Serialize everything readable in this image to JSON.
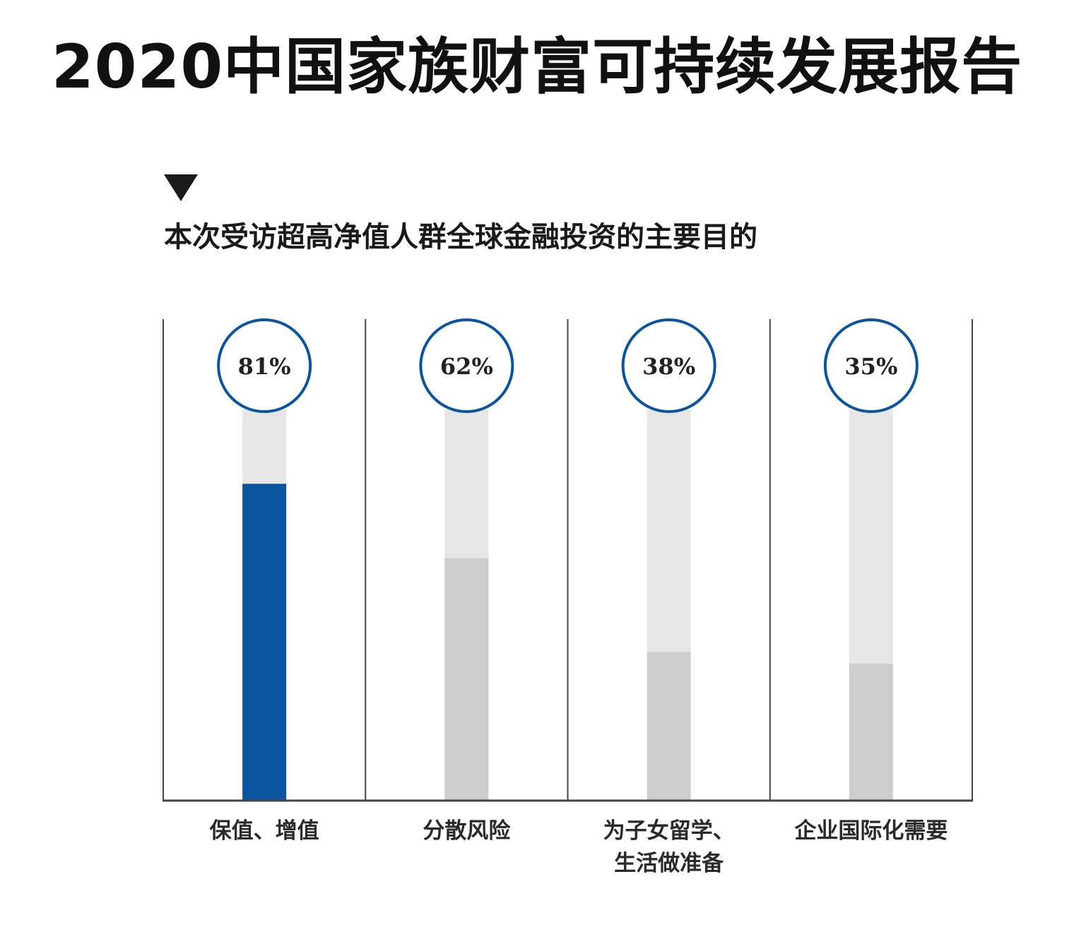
{
  "title": "2020中国家族财富可持续发展报告",
  "subtitle": "本次受访超高净值人群全球金融投资的主要目的",
  "colors": {
    "highlight_bar": "#0b55a0",
    "bar": "#cdcdcf",
    "track": "#e6e6e7",
    "circle_stroke": "#0b55a0",
    "axis": "#444444"
  },
  "chart_data": {
    "type": "bar",
    "title": "本次受访超高净值人群全球金融投资的主要目的",
    "categories": [
      [
        "保值、增值"
      ],
      [
        "分散风险"
      ],
      [
        "为子女留学、",
        "生活做准备"
      ],
      [
        "企业国际化需要"
      ]
    ],
    "values": [
      81,
      62,
      38,
      35
    ],
    "value_labels": [
      "81%",
      "62%",
      "38%",
      "35%"
    ],
    "highlight_index": 0,
    "ylim": [
      0,
      100
    ],
    "unit": "%"
  }
}
